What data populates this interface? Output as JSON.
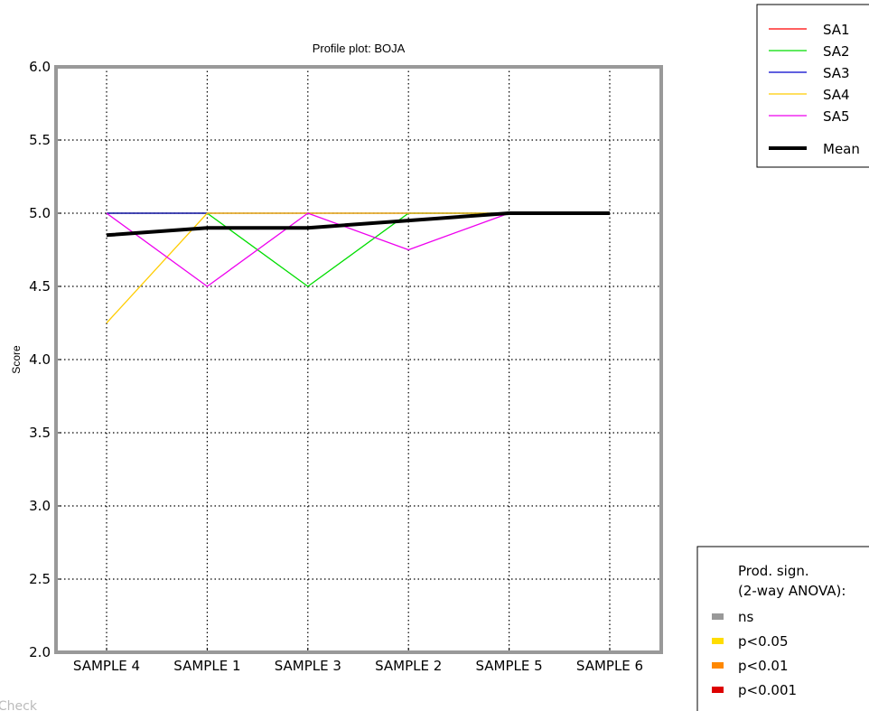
{
  "chart_data": {
    "type": "line",
    "title": "Profile plot: BOJA",
    "xlabel": "",
    "ylabel": "Score",
    "ylim": [
      2.0,
      6.0
    ],
    "yticks": [
      "2.0",
      "2.5",
      "3.0",
      "3.5",
      "4.0",
      "4.5",
      "5.0",
      "5.5",
      "6.0"
    ],
    "categories": [
      "SAMPLE 4",
      "SAMPLE 1",
      "SAMPLE 3",
      "SAMPLE 2",
      "SAMPLE 5",
      "SAMPLE 6"
    ],
    "grid": true,
    "series": [
      {
        "name": "SA1",
        "color": "#ff0000",
        "width": "thin",
        "values": [
          5.0,
          5.0,
          5.0,
          5.0,
          5.0,
          5.0
        ]
      },
      {
        "name": "SA2",
        "color": "#00dd00",
        "width": "thin",
        "values": [
          5.0,
          5.0,
          4.5,
          5.0,
          5.0,
          5.0
        ]
      },
      {
        "name": "SA3",
        "color": "#0000cc",
        "width": "thin",
        "values": [
          5.0,
          5.0,
          5.0,
          5.0,
          5.0,
          5.0
        ]
      },
      {
        "name": "SA4",
        "color": "#ffcc00",
        "width": "thin",
        "values": [
          4.25,
          5.0,
          5.0,
          5.0,
          5.0,
          5.0
        ]
      },
      {
        "name": "SA5",
        "color": "#ee00ee",
        "width": "thin",
        "values": [
          5.0,
          4.5,
          5.0,
          4.75,
          5.0,
          5.0
        ]
      },
      {
        "name": "Mean",
        "color": "#000000",
        "width": "thick",
        "values": [
          4.85,
          4.9,
          4.9,
          4.95,
          5.0,
          5.0
        ]
      }
    ],
    "legend_position": "top-right",
    "significance_legend": {
      "title_line1": "Prod. sign.",
      "title_line2": "(2-way ANOVA):",
      "position": "bottom-right",
      "entries": [
        {
          "label": "ns",
          "color": "#999999"
        },
        {
          "label": "p<0.05",
          "color": "#ffdd00"
        },
        {
          "label": "p<0.01",
          "color": "#ff8800"
        },
        {
          "label": "p<0.001",
          "color": "#dd0000"
        }
      ]
    }
  },
  "watermark": "lCheck"
}
